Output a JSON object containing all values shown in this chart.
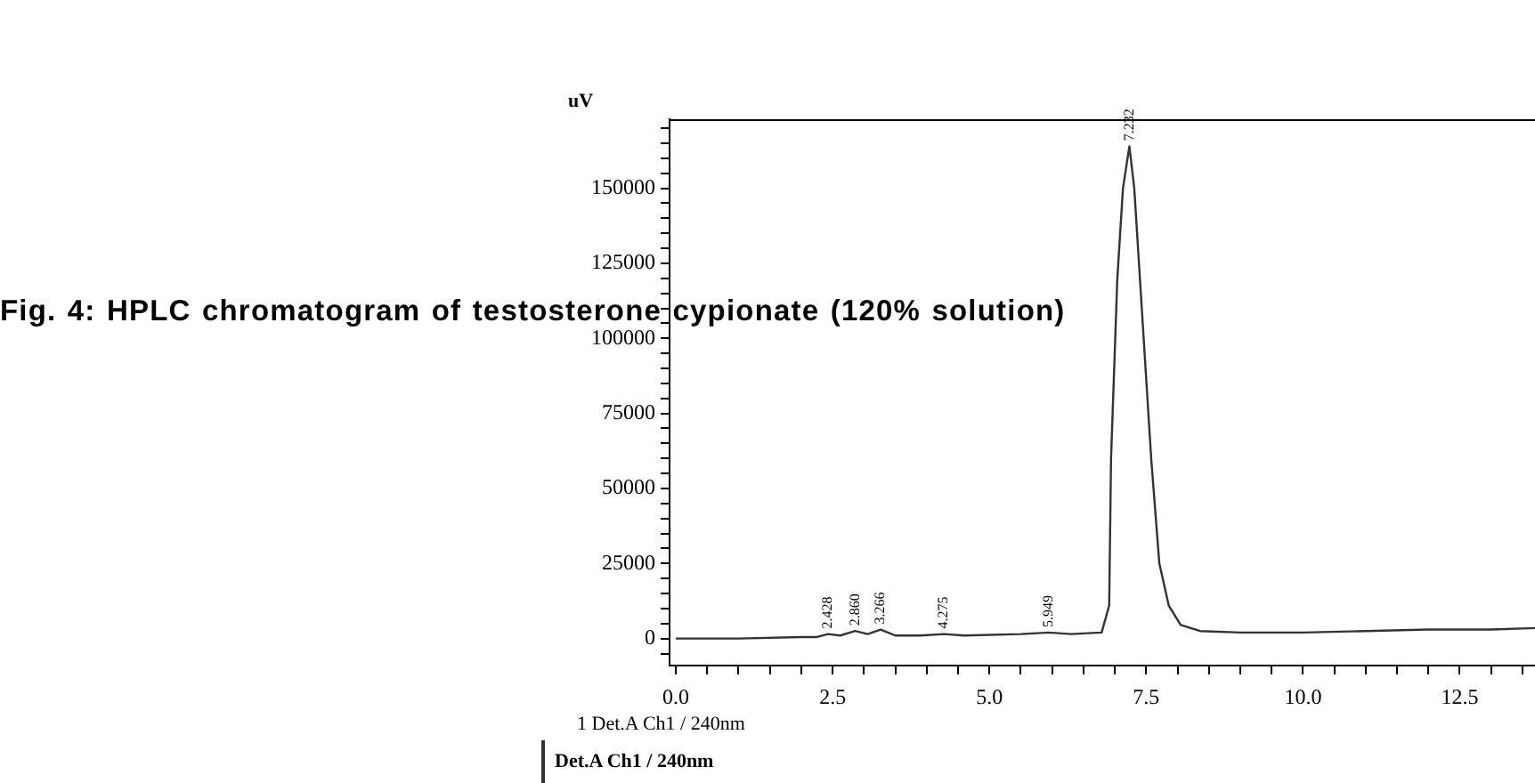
{
  "chart_data": {
    "type": "line",
    "title": "Fig. 4: HPLC chromatogram of testosterone cypionate (120% solution)",
    "ylabel": "uV",
    "x": [
      0,
      1,
      2,
      2.25,
      2.428,
      2.62,
      2.86,
      3.06,
      3.266,
      3.5,
      3.9,
      4.275,
      4.6,
      5.5,
      5.949,
      6.3,
      6.79,
      6.91,
      6.94,
      7.04,
      7.13,
      7.232,
      7.31,
      7.4,
      7.58,
      7.71,
      7.86,
      8.05,
      8.36,
      9,
      10,
      11,
      12,
      13,
      13.7
    ],
    "series": [
      {
        "name": "Det.A Ch1 / 240nm",
        "color": "#333333",
        "values": [
          0,
          0,
          500,
          500,
          1500,
          1000,
          2500,
          1500,
          3000,
          1000,
          1000,
          1500,
          1000,
          1500,
          2000,
          1500,
          2000,
          11000,
          60000,
          120000,
          150000,
          164000,
          150000,
          120000,
          60000,
          25000,
          11000,
          4500,
          2500,
          2000,
          2000,
          2500,
          3000,
          3000,
          3500
        ]
      }
    ],
    "xlim": [
      -0.1,
      13.7
    ],
    "xticks": [
      {
        "value": 0,
        "label": "0.0"
      },
      {
        "value": 0.5,
        "label": null
      },
      {
        "value": 1,
        "label": null
      },
      {
        "value": 1.5,
        "label": null
      },
      {
        "value": 2,
        "label": null
      },
      2.5,
      {
        "value": 3,
        "label": null
      },
      {
        "value": 3.5,
        "label": null
      },
      {
        "value": 4,
        "label": null
      },
      {
        "value": 4.5,
        "label": null
      },
      {
        "value": 5,
        "label": "5.0"
      },
      {
        "value": 5.5,
        "label": null
      },
      {
        "value": 6,
        "label": null
      },
      {
        "value": 6.5,
        "label": null
      },
      {
        "value": 7,
        "label": null
      },
      7.5,
      {
        "value": 8,
        "label": null
      },
      {
        "value": 8.5,
        "label": null
      },
      {
        "value": 9,
        "label": null
      },
      {
        "value": 9.5,
        "label": null
      },
      {
        "value": 10,
        "label": "10.0"
      },
      {
        "value": 10.5,
        "label": null
      },
      {
        "value": 11,
        "label": null
      },
      {
        "value": 11.5,
        "label": null
      },
      {
        "value": 12,
        "label": null
      },
      12.5,
      {
        "value": 13,
        "label": null
      },
      {
        "value": 13.5,
        "label": null
      }
    ],
    "ylim": [
      -9000,
      173000
    ],
    "yticks": [
      {
        "value": -5000,
        "label": null
      },
      0,
      {
        "value": 5000,
        "label": null
      },
      {
        "value": 10000,
        "label": null
      },
      {
        "value": 15000,
        "label": null
      },
      {
        "value": 20000,
        "label": null
      },
      25000,
      {
        "value": 30000,
        "label": null
      },
      {
        "value": 35000,
        "label": null
      },
      {
        "value": 40000,
        "label": null
      },
      {
        "value": 45000,
        "label": null
      },
      50000,
      {
        "value": 55000,
        "label": null
      },
      {
        "value": 60000,
        "label": null
      },
      {
        "value": 65000,
        "label": null
      },
      {
        "value": 70000,
        "label": null
      },
      75000,
      {
        "value": 80000,
        "label": null
      },
      {
        "value": 85000,
        "label": null
      },
      {
        "value": 90000,
        "label": null
      },
      {
        "value": 95000,
        "label": null
      },
      100000,
      {
        "value": 105000,
        "label": null
      },
      {
        "value": 110000,
        "label": null
      },
      {
        "value": 115000,
        "label": null
      },
      {
        "value": 120000,
        "label": null
      },
      125000,
      {
        "value": 130000,
        "label": null
      },
      {
        "value": 135000,
        "label": null
      },
      {
        "value": 140000,
        "label": null
      },
      {
        "value": 145000,
        "label": null
      },
      150000,
      {
        "value": 155000,
        "label": null
      },
      {
        "value": 160000,
        "label": null
      },
      {
        "value": 165000,
        "label": null
      },
      {
        "value": 170000,
        "label": null
      }
    ],
    "marker": "none",
    "legend": "bottom left",
    "annotations": [
      "1 Det.A Ch1 / 240nm",
      {
        "text": "2.428",
        "x": 2.428,
        "y": 1500
      },
      {
        "text": "2.860",
        "x": 2.86,
        "y": 2500
      },
      {
        "text": "3.266",
        "x": 3.266,
        "y": 3000
      },
      {
        "text": "4.275",
        "x": 4.275,
        "y": 1500
      },
      {
        "text": "5.949",
        "x": 5.949,
        "y": 2000
      },
      {
        "text": "7.232",
        "x": 7.232,
        "y": 164000
      }
    ]
  }
}
